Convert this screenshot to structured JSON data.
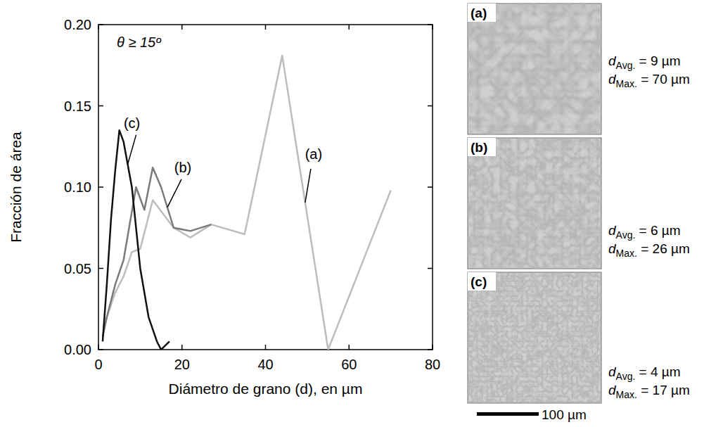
{
  "chart_data": {
    "type": "line",
    "annotation": "θ ≥ 15º",
    "x_label": "Diámetro de grano (d), en µm",
    "y_label": "Fracción de área",
    "xlim": [
      0,
      80
    ],
    "xticks": [
      0,
      20,
      40,
      60,
      80
    ],
    "ylim": [
      0,
      0.2
    ],
    "yticks": [
      {
        "value": 0,
        "label": "0.00"
      },
      0.05,
      {
        "value": 0.1,
        "label": "0.10"
      },
      0.15,
      {
        "value": 0.2,
        "label": "0.20"
      }
    ],
    "series": [
      {
        "name": "(a)",
        "color": "#bdbdbd",
        "x": [
          1,
          2,
          4,
          6,
          8,
          10,
          13,
          18,
          22,
          27,
          35,
          44,
          55,
          70
        ],
        "values": [
          0.008,
          0.02,
          0.035,
          0.045,
          0.06,
          0.062,
          0.092,
          0.075,
          0.069,
          0.077,
          0.071,
          0.181,
          0.0,
          0.098
        ]
      },
      {
        "name": "(b)",
        "color": "#7a7a7a",
        "x": [
          1,
          2,
          4,
          6,
          8,
          9,
          11,
          13,
          15,
          18,
          22,
          27
        ],
        "values": [
          0.008,
          0.02,
          0.04,
          0.055,
          0.085,
          0.1,
          0.086,
          0.112,
          0.1,
          0.075,
          0.073,
          0.077
        ]
      },
      {
        "name": "(c)",
        "color": "#111111",
        "x": [
          1,
          2,
          3,
          4,
          5,
          6,
          8,
          10,
          12,
          14,
          15,
          17
        ],
        "values": [
          0.005,
          0.04,
          0.08,
          0.11,
          0.135,
          0.128,
          0.1,
          0.05,
          0.02,
          0.005,
          0.0,
          0.005
        ]
      }
    ]
  },
  "micrographs": {
    "scale_bar": "100 µm",
    "panels": [
      {
        "label": "(a)",
        "stats": [
          {
            "symbol": "d",
            "sub": "Avg.",
            "text": " = 9 µm"
          },
          {
            "symbol": "d",
            "sub": "Max.",
            "text": " = 70 µm"
          }
        ]
      },
      {
        "label": "(b)",
        "stats": [
          {
            "symbol": "d",
            "sub": "Avg.",
            "text": " = 6 µm"
          },
          {
            "symbol": "d",
            "sub": "Max.",
            "text": " = 26 µm"
          }
        ]
      },
      {
        "label": "(c)",
        "stats": [
          {
            "symbol": "d",
            "sub": "Avg.",
            "text": " = 4 µm"
          },
          {
            "symbol": "d",
            "sub": "Max.",
            "text": " = 17 µm"
          }
        ]
      }
    ]
  }
}
